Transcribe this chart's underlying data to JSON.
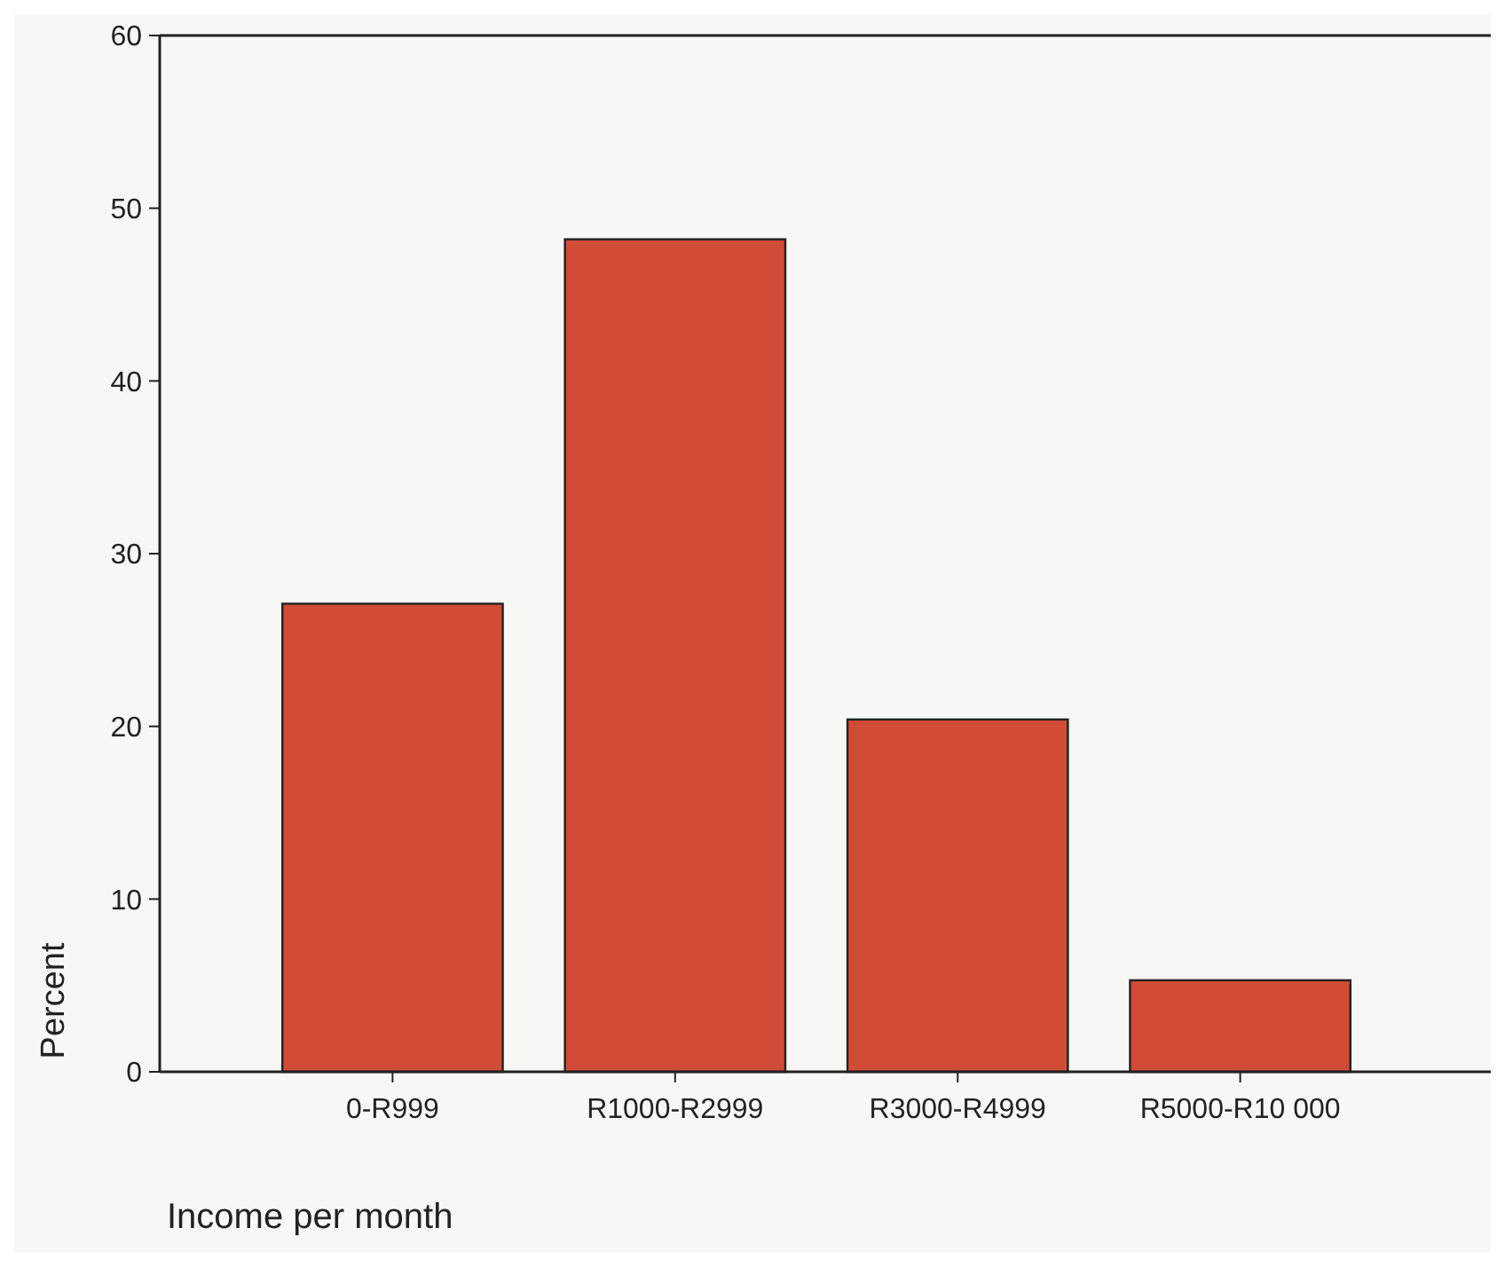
{
  "chart_data": {
    "type": "bar",
    "xlabel": "Income per month",
    "ylabel": "Percent",
    "categories": [
      "0-R999",
      "R1000-R2999",
      "R3000-R4999",
      "R5000-R10 000"
    ],
    "values": [
      27.1,
      48.2,
      20.4,
      5.3
    ],
    "color": "#d24b37",
    "ylim": [
      0,
      60
    ],
    "yticks": [
      0,
      10,
      20,
      30,
      40,
      50,
      60
    ],
    "grid": false
  }
}
